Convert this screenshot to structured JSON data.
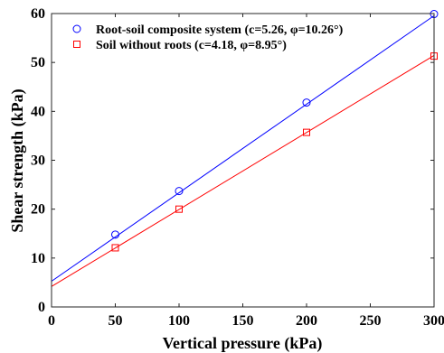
{
  "chart_data": {
    "type": "scatter",
    "xlabel": "Vertical pressure (kPa)",
    "ylabel": "Shear strength (kPa)",
    "xlim": [
      0,
      300
    ],
    "ylim": [
      0,
      60
    ],
    "xticks": [
      0,
      50,
      100,
      150,
      200,
      250,
      300
    ],
    "yticks": [
      0,
      10,
      20,
      30,
      40,
      50,
      60
    ],
    "grid": false,
    "legend_position": "top-left",
    "series": [
      {
        "name": "Root-soil composite system (c=5.26, φ=10.26°)",
        "color": "#0000ff",
        "marker": "circle",
        "x": [
          50,
          100,
          200,
          300
        ],
        "y": [
          14.8,
          23.7,
          41.8,
          59.9
        ],
        "fit": {
          "intercept": 5.26,
          "slope": 0.181
        }
      },
      {
        "name": "Soil without roots (c=4.18, φ=8.95°)",
        "color": "#ff0000",
        "marker": "square",
        "x": [
          50,
          100,
          200,
          300
        ],
        "y": [
          12.1,
          20.0,
          35.7,
          51.3
        ],
        "fit": {
          "intercept": 4.18,
          "slope": 0.1575
        }
      }
    ]
  }
}
